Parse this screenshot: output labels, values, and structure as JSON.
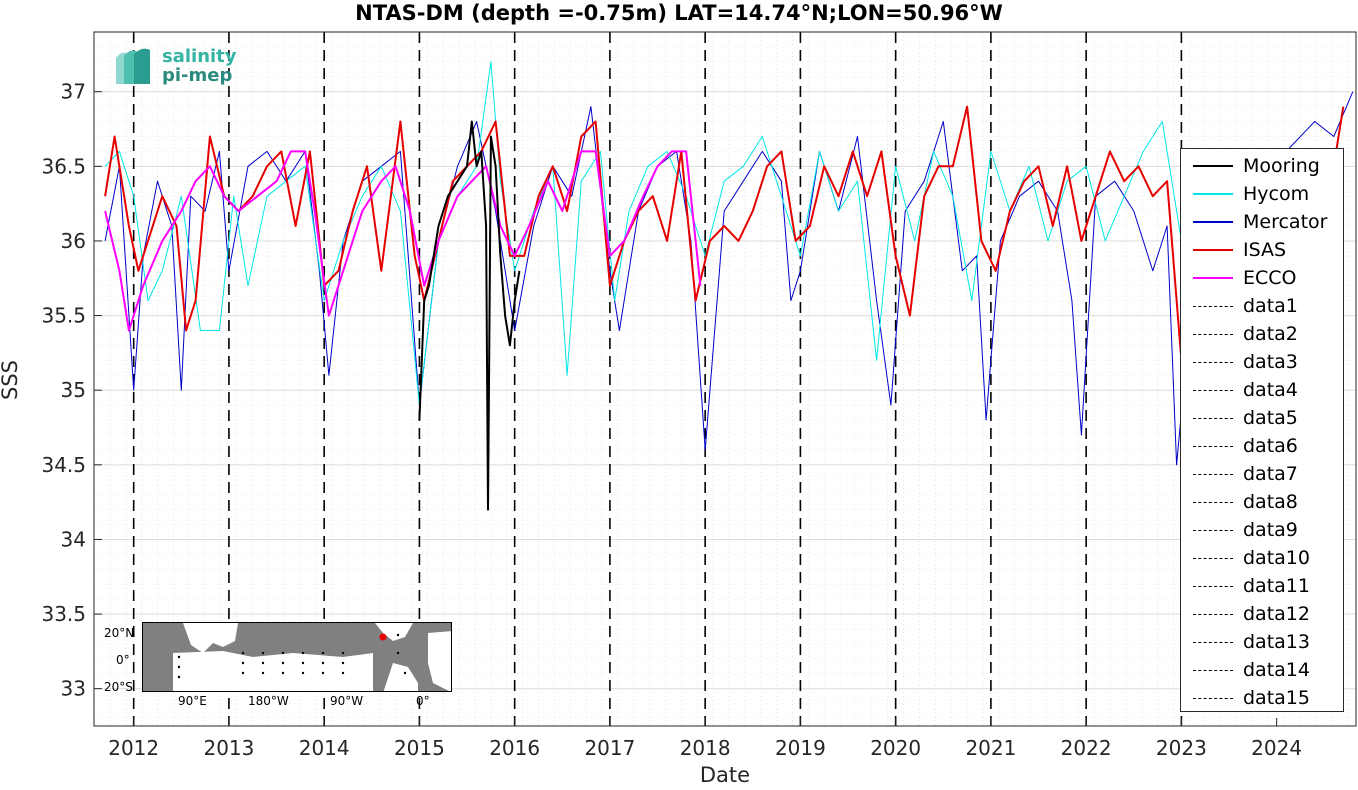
{
  "chart_data": {
    "type": "line",
    "title": "NTAS-DM (depth =-0.75m) LAT=14.74°N;LON=50.96°W",
    "xlabel": "Date",
    "ylabel": "SSS",
    "xlim": [
      "2011-08",
      "2024-11"
    ],
    "ylim": [
      32.75,
      37.4
    ],
    "yticks": [
      33,
      33.5,
      34,
      34.5,
      35,
      35.5,
      36,
      36.5,
      37
    ],
    "xticks": [
      "2012",
      "2013",
      "2014",
      "2015",
      "2016",
      "2017",
      "2018",
      "2019",
      "2020",
      "2021",
      "2022",
      "2023",
      "2024"
    ],
    "grid": true,
    "legend_position": "right",
    "vertical_lines_at": [
      "2012",
      "2013",
      "2014",
      "2015",
      "2016",
      "2017",
      "2018",
      "2019",
      "2020",
      "2021",
      "2022",
      "2023"
    ],
    "series": [
      {
        "name": "Mooring",
        "color": "#000000",
        "style": "solid-dots",
        "x": [
          2015.0,
          2015.05,
          2015.1,
          2015.2,
          2015.3,
          2015.4,
          2015.5,
          2015.55,
          2015.6,
          2015.65,
          2015.7,
          2015.72,
          2015.75,
          2015.8,
          2015.85,
          2015.9,
          2015.95,
          2016.0,
          2016.05
        ],
        "y": [
          34.8,
          35.6,
          35.7,
          36.1,
          36.3,
          36.4,
          36.5,
          36.8,
          36.5,
          36.6,
          36.1,
          34.2,
          36.7,
          36.5,
          35.9,
          35.5,
          35.3,
          35.6,
          35.8
        ]
      },
      {
        "name": "Hycom",
        "color": "#00e6e6",
        "style": "solid",
        "x": [
          2011.7,
          2011.85,
          2012.0,
          2012.15,
          2012.3,
          2012.5,
          2012.7,
          2012.9,
          2013.05,
          2013.2,
          2013.4,
          2013.6,
          2013.8,
          2014.0,
          2014.2,
          2014.4,
          2014.6,
          2014.8,
          2015.0,
          2015.2,
          2015.4,
          2015.6,
          2015.75,
          2015.85,
          2016.0,
          2016.2,
          2016.4,
          2016.55,
          2016.7,
          2016.9,
          2017.05,
          2017.2,
          2017.4,
          2017.6,
          2017.8,
          2018.0,
          2018.2,
          2018.4,
          2018.6,
          2018.8,
          2019.0,
          2019.2,
          2019.4,
          2019.6,
          2019.8,
          2020.0,
          2020.2,
          2020.4,
          2020.6,
          2020.8,
          2021.0,
          2021.2,
          2021.4,
          2021.6,
          2021.8,
          2022.0,
          2022.2,
          2022.4,
          2022.6,
          2022.8,
          2023.0
        ],
        "y": [
          36.5,
          36.6,
          36.3,
          35.6,
          35.8,
          36.3,
          35.4,
          35.4,
          36.3,
          35.7,
          36.3,
          36.4,
          36.5,
          35.6,
          36.0,
          36.3,
          36.5,
          36.2,
          34.9,
          36.0,
          36.3,
          36.5,
          37.2,
          36.4,
          35.8,
          36.2,
          36.5,
          35.1,
          36.4,
          36.6,
          35.6,
          36.2,
          36.5,
          36.6,
          36.3,
          35.9,
          36.4,
          36.5,
          36.7,
          36.3,
          35.9,
          36.6,
          36.2,
          36.4,
          35.2,
          36.5,
          36.0,
          36.6,
          36.3,
          35.6,
          36.6,
          36.2,
          36.5,
          36.0,
          36.4,
          36.5,
          36.0,
          36.3,
          36.6,
          36.8,
          36.0
        ]
      },
      {
        "name": "Mercator",
        "color": "#0000cc",
        "style": "solid",
        "x": [
          2011.7,
          2011.85,
          2012.0,
          2012.1,
          2012.25,
          2012.4,
          2012.5,
          2012.6,
          2012.75,
          2012.9,
          2013.0,
          2013.2,
          2013.4,
          2013.6,
          2013.8,
          2013.95,
          2014.05,
          2014.2,
          2014.4,
          2014.6,
          2014.8,
          2015.0,
          2015.2,
          2015.4,
          2015.6,
          2015.8,
          2016.0,
          2016.2,
          2016.4,
          2016.6,
          2016.8,
          2017.0,
          2017.1,
          2017.3,
          2017.5,
          2017.7,
          2017.85,
          2018.0,
          2018.2,
          2018.4,
          2018.6,
          2018.8,
          2018.9,
          2019.0,
          2019.2,
          2019.4,
          2019.6,
          2019.8,
          2019.95,
          2020.1,
          2020.3,
          2020.5,
          2020.7,
          2020.85,
          2020.95,
          2021.1,
          2021.3,
          2021.5,
          2021.7,
          2021.85,
          2021.95,
          2022.1,
          2022.3,
          2022.5,
          2022.7,
          2022.85,
          2022.95,
          2023.05,
          2023.2,
          2023.5,
          2023.8,
          2024.1,
          2024.4,
          2024.6,
          2024.8
        ],
        "y": [
          36.0,
          36.5,
          35.0,
          35.9,
          36.4,
          36.1,
          35.0,
          36.3,
          36.2,
          36.6,
          35.8,
          36.5,
          36.6,
          36.4,
          36.6,
          35.8,
          35.1,
          36.0,
          36.4,
          36.5,
          36.6,
          34.9,
          36.0,
          36.5,
          36.8,
          36.2,
          35.4,
          36.1,
          36.5,
          36.3,
          36.9,
          35.8,
          35.4,
          36.2,
          36.5,
          36.6,
          36.0,
          34.6,
          36.2,
          36.4,
          36.6,
          36.4,
          35.6,
          35.8,
          36.6,
          36.2,
          36.7,
          35.6,
          34.9,
          36.2,
          36.4,
          36.8,
          35.8,
          35.9,
          34.8,
          36.0,
          36.3,
          36.4,
          36.2,
          35.6,
          34.7,
          36.3,
          36.4,
          36.2,
          35.8,
          36.1,
          34.5,
          35.2,
          36.0,
          36.3,
          36.5,
          36.6,
          36.8,
          36.7,
          37.0
        ]
      },
      {
        "name": "ISAS",
        "color": "#e60000",
        "style": "solid",
        "x": [
          2011.7,
          2011.8,
          2011.95,
          2012.05,
          2012.15,
          2012.3,
          2012.45,
          2012.55,
          2012.65,
          2012.8,
          2012.95,
          2013.1,
          2013.25,
          2013.4,
          2013.55,
          2013.7,
          2013.85,
          2014.0,
          2014.15,
          2014.3,
          2014.45,
          2014.6,
          2014.8,
          2014.95,
          2015.05,
          2015.2,
          2015.35,
          2015.5,
          2015.65,
          2015.8,
          2015.95,
          2016.1,
          2016.25,
          2016.4,
          2016.55,
          2016.7,
          2016.85,
          2017.0,
          2017.15,
          2017.3,
          2017.45,
          2017.6,
          2017.75,
          2017.9,
          2018.05,
          2018.2,
          2018.35,
          2018.5,
          2018.65,
          2018.8,
          2018.95,
          2019.1,
          2019.25,
          2019.4,
          2019.55,
          2019.7,
          2019.85,
          2020.0,
          2020.15,
          2020.3,
          2020.45,
          2020.6,
          2020.75,
          2020.9,
          2021.05,
          2021.2,
          2021.35,
          2021.5,
          2021.65,
          2021.8,
          2021.95,
          2022.1,
          2022.25,
          2022.4,
          2022.55,
          2022.7,
          2022.85,
          2023.0,
          2023.1,
          2024.55,
          2024.7
        ],
        "y": [
          36.3,
          36.7,
          36.1,
          35.8,
          36.0,
          36.3,
          36.1,
          35.4,
          35.6,
          36.7,
          36.3,
          36.2,
          36.3,
          36.5,
          36.6,
          36.1,
          36.6,
          35.7,
          35.8,
          36.2,
          36.5,
          35.8,
          36.8,
          35.9,
          35.6,
          36.0,
          36.4,
          36.5,
          36.6,
          36.8,
          35.9,
          35.9,
          36.3,
          36.5,
          36.2,
          36.7,
          36.8,
          35.7,
          36.0,
          36.2,
          36.3,
          36.0,
          36.6,
          35.6,
          36.0,
          36.1,
          36.0,
          36.2,
          36.5,
          36.6,
          36.0,
          36.1,
          36.5,
          36.3,
          36.6,
          36.3,
          36.6,
          35.9,
          35.5,
          36.3,
          36.5,
          36.5,
          36.9,
          36.0,
          35.8,
          36.2,
          36.4,
          36.5,
          36.1,
          36.5,
          36.0,
          36.3,
          36.6,
          36.4,
          36.5,
          36.3,
          36.4,
          35.2,
          34.9,
          36.3,
          36.9
        ]
      },
      {
        "name": "ECCO",
        "color": "#ff00ff",
        "style": "solid",
        "x": [
          2011.7,
          2011.85,
          2011.95,
          2012.1,
          2012.3,
          2012.5,
          2012.65,
          2012.8,
          2012.95,
          2013.1,
          2013.3,
          2013.5,
          2013.65,
          2013.8,
          2013.9,
          2014.05,
          2014.2,
          2014.4,
          2014.6,
          2014.75,
          2014.9,
          2015.05,
          2015.2,
          2015.4,
          2015.55,
          2015.7,
          2015.85,
          2016.0,
          2016.15,
          2016.35,
          2016.5,
          2016.7,
          2016.85,
          2017.0,
          2017.15,
          2017.35,
          2017.5,
          2017.65,
          2017.8,
          2017.95
        ],
        "y": [
          36.2,
          35.8,
          35.4,
          35.7,
          36.0,
          36.2,
          36.4,
          36.5,
          36.3,
          36.2,
          36.3,
          36.4,
          36.6,
          36.6,
          36.2,
          35.5,
          35.8,
          36.2,
          36.4,
          36.5,
          36.2,
          35.7,
          36.0,
          36.3,
          36.4,
          36.5,
          36.1,
          35.9,
          36.1,
          36.4,
          36.2,
          36.6,
          36.6,
          35.9,
          36.0,
          36.3,
          36.5,
          36.6,
          36.6,
          35.7
        ]
      },
      {
        "name": "data1",
        "color": "#000000",
        "style": "dashed"
      },
      {
        "name": "data2",
        "color": "#000000",
        "style": "dashed"
      },
      {
        "name": "data3",
        "color": "#000000",
        "style": "dashed"
      },
      {
        "name": "data4",
        "color": "#000000",
        "style": "dashed"
      },
      {
        "name": "data5",
        "color": "#000000",
        "style": "dashed"
      },
      {
        "name": "data6",
        "color": "#000000",
        "style": "dashed"
      },
      {
        "name": "data7",
        "color": "#000000",
        "style": "dashed"
      },
      {
        "name": "data8",
        "color": "#000000",
        "style": "dashed"
      },
      {
        "name": "data9",
        "color": "#000000",
        "style": "dashed"
      },
      {
        "name": "data10",
        "color": "#000000",
        "style": "dashed"
      },
      {
        "name": "data11",
        "color": "#000000",
        "style": "dashed"
      },
      {
        "name": "data12",
        "color": "#000000",
        "style": "dashed"
      },
      {
        "name": "data13",
        "color": "#000000",
        "style": "dashed"
      },
      {
        "name": "data14",
        "color": "#000000",
        "style": "dashed"
      },
      {
        "name": "data15",
        "color": "#000000",
        "style": "dashed"
      }
    ]
  },
  "logo": {
    "line1": "salinity",
    "line2": "pi-mep"
  },
  "inset_map": {
    "lat_labels": [
      "20°N",
      "0°",
      "20°S"
    ],
    "lon_labels": [
      "90°E",
      "180°W",
      "90°W",
      "0°"
    ],
    "marker_color": "#e60000"
  }
}
